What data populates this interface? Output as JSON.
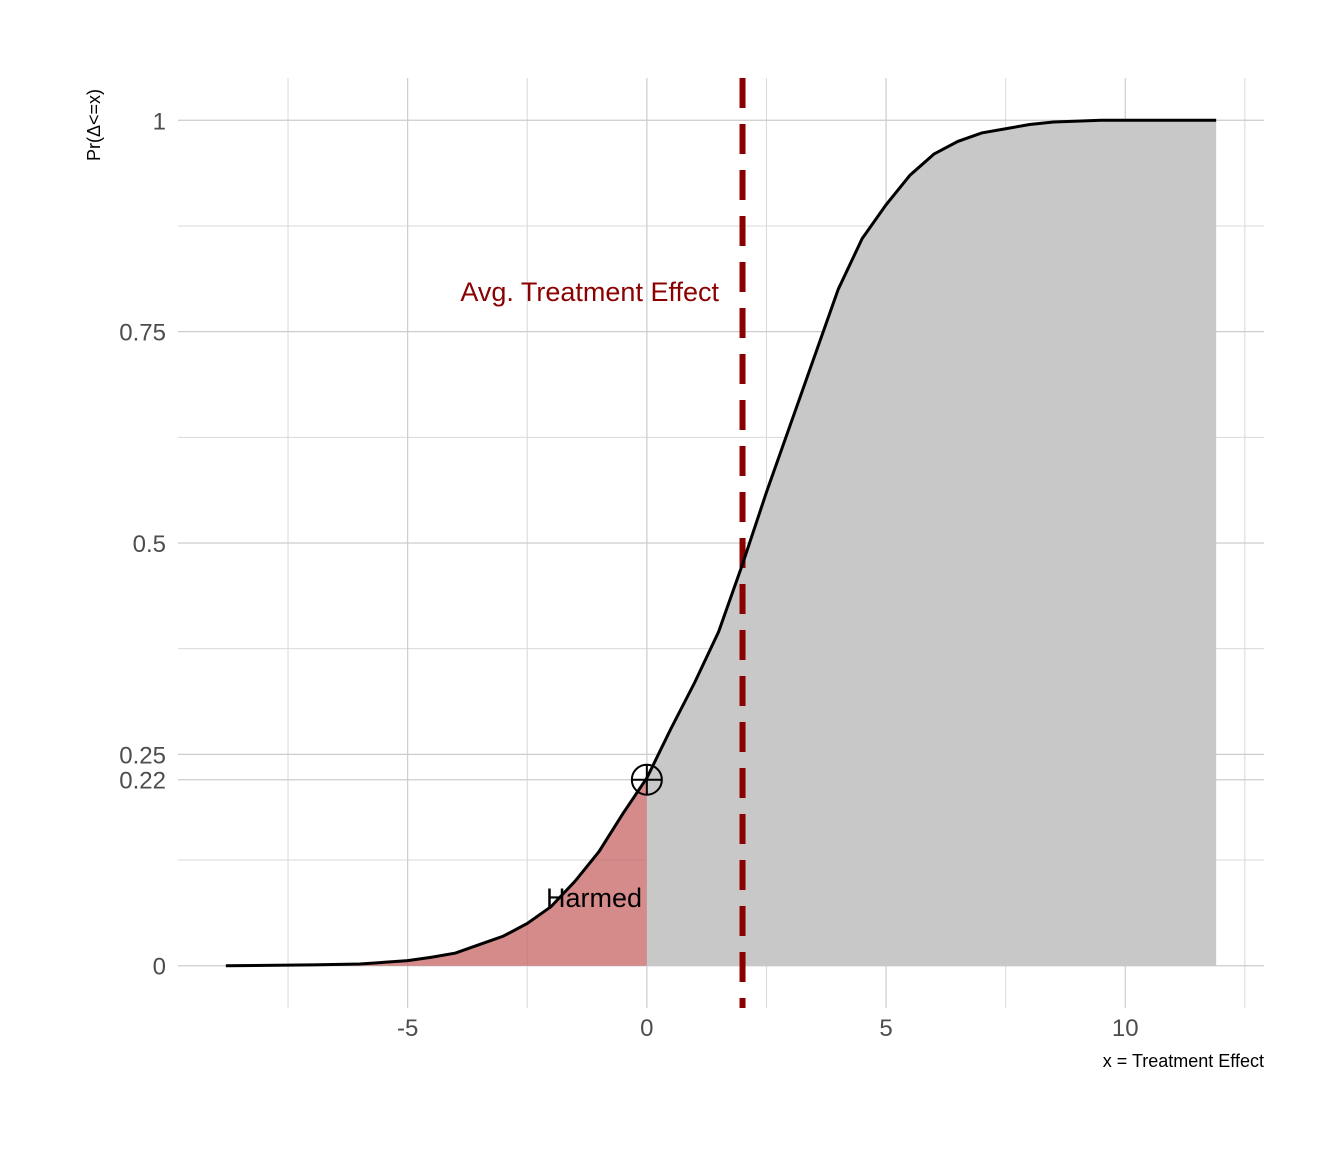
{
  "chart_data": {
    "type": "area",
    "xlabel": "x = Treatment Effect",
    "ylabel": "Pr(Δ<=x)",
    "xlim": [
      -9.8,
      12.9
    ],
    "ylim": [
      -0.05,
      1.05
    ],
    "x_ticks": [
      -5,
      0,
      5,
      10
    ],
    "x_tick_labels": [
      "-5",
      "0",
      "5",
      "10"
    ],
    "y_ticks": [
      0,
      0.22,
      0.25,
      0.5,
      0.75,
      1
    ],
    "y_tick_labels": [
      "0",
      "0.22",
      "0.25",
      "0.5",
      "0.75",
      "1"
    ],
    "grid": true,
    "series": [
      {
        "x": [
          -8.8,
          -7,
          -6,
          -5,
          -4.5,
          -4,
          -3.5,
          -3,
          -2.5,
          -2,
          -1.5,
          -1,
          -0.5,
          0,
          0.5,
          1,
          1.5,
          2,
          2.5,
          3,
          3.5,
          4,
          4.5,
          5,
          5.5,
          6,
          6.5,
          7,
          7.5,
          8,
          8.5,
          9,
          9.5,
          10,
          11,
          11.9
        ],
        "y": [
          0,
          0.001,
          0.002,
          0.006,
          0.01,
          0.015,
          0.025,
          0.035,
          0.05,
          0.07,
          0.1,
          0.135,
          0.18,
          0.222,
          0.28,
          0.335,
          0.395,
          0.475,
          0.56,
          0.64,
          0.72,
          0.8,
          0.86,
          0.9,
          0.935,
          0.96,
          0.975,
          0.985,
          0.99,
          0.995,
          0.998,
          0.999,
          1,
          1,
          1,
          1
        ]
      }
    ],
    "shaded_regions": [
      {
        "label": "Harmed",
        "from": -8.8,
        "to": 0,
        "color": "#c45a5a"
      },
      {
        "from": 0,
        "to": 11.9,
        "color": "#c8c8c8"
      }
    ],
    "vline": {
      "x": 2,
      "label": "Avg. Treatment Effect",
      "color": "#8b0000",
      "style": "dashed"
    },
    "marker": {
      "x": 0,
      "y": 0.22,
      "shape": "circle-plus"
    },
    "harmed_label": "Harmed"
  }
}
